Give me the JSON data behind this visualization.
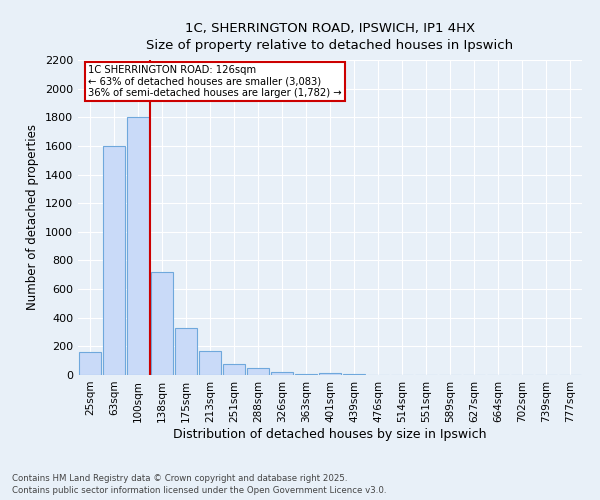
{
  "title_line1": "1C, SHERRINGTON ROAD, IPSWICH, IP1 4HX",
  "title_line2": "Size of property relative to detached houses in Ipswich",
  "xlabel": "Distribution of detached houses by size in Ipswich",
  "ylabel": "Number of detached properties",
  "categories": [
    "25sqm",
    "63sqm",
    "100sqm",
    "138sqm",
    "175sqm",
    "213sqm",
    "251sqm",
    "288sqm",
    "326sqm",
    "363sqm",
    "401sqm",
    "439sqm",
    "476sqm",
    "514sqm",
    "551sqm",
    "589sqm",
    "627sqm",
    "664sqm",
    "702sqm",
    "739sqm",
    "777sqm"
  ],
  "values": [
    160,
    1600,
    1800,
    720,
    325,
    165,
    80,
    48,
    22,
    10,
    12,
    5,
    2,
    0,
    0,
    0,
    0,
    0,
    0,
    0,
    0
  ],
  "bar_color": "#c9daf8",
  "bar_edge_color": "#6fa8dc",
  "vline_x": 2.5,
  "vline_color": "#cc0000",
  "annotation_title": "1C SHERRINGTON ROAD: 126sqm",
  "annotation_line2": "← 63% of detached houses are smaller (3,083)",
  "annotation_line3": "36% of semi-detached houses are larger (1,782) →",
  "annotation_box_color": "#cc0000",
  "annotation_bg": "#ffffff",
  "ylim": [
    0,
    2200
  ],
  "yticks": [
    0,
    200,
    400,
    600,
    800,
    1000,
    1200,
    1400,
    1600,
    1800,
    2000,
    2200
  ],
  "bg_color": "#e8f0f8",
  "footnote_line1": "Contains HM Land Registry data © Crown copyright and database right 2025.",
  "footnote_line2": "Contains public sector information licensed under the Open Government Licence v3.0."
}
